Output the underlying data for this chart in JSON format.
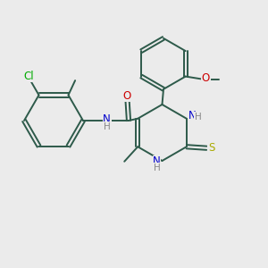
{
  "bg_color": "#ebebeb",
  "bond_color": "#2d5a4a",
  "bond_width": 1.4,
  "atom_colors": {
    "N": "#0000cc",
    "O": "#cc0000",
    "S": "#aaaa00",
    "Cl": "#00aa00",
    "C": "#2d5a4a",
    "H": "#888888"
  },
  "font_size": 8.5
}
